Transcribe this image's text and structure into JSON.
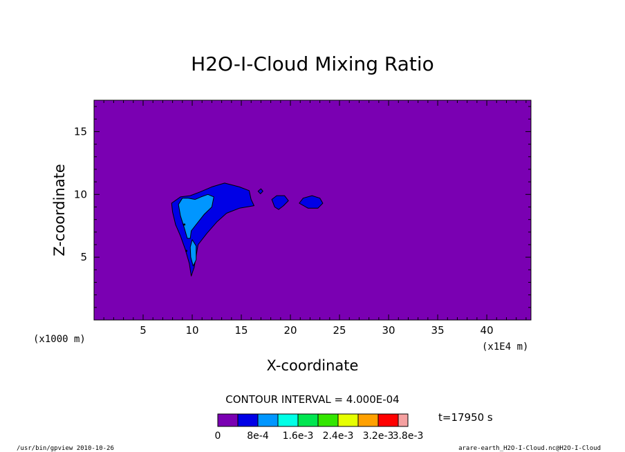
{
  "chart_data": {
    "type": "heatmap",
    "title": "H2O-I-Cloud Mixing Ratio",
    "xlabel": "X-coordinate",
    "ylabel": "Z-coordinate",
    "x_units_left": "(x1000 m)",
    "x_units_right": "(x1E4 m)",
    "xlim": [
      0,
      44.5
    ],
    "ylim": [
      0,
      17.5
    ],
    "x_ticks": [
      5,
      10,
      15,
      20,
      25,
      30,
      35,
      40
    ],
    "x_tick_labels": [
      "5",
      "10",
      "15",
      "20",
      "25",
      "30",
      "35",
      "40"
    ],
    "y_ticks": [
      5,
      10,
      15
    ],
    "y_tick_labels": [
      "5",
      "10",
      "15"
    ],
    "contour_interval_text": "CONTOUR INTERVAL = 4.000E-04",
    "time_text": "t=17950 s",
    "footer_left": "/usr/bin/gpview  2010-10-26",
    "footer_right": "arare-earth_H2O-I-Cloud.nc@H2O-I-Cloud",
    "legend_colors": [
      "#7a00b2",
      "#0000e6",
      "#0096ff",
      "#00ffe6",
      "#00e650",
      "#33e600",
      "#e6ff00",
      "#ffa000",
      "#ff0000",
      "#f5a0a0"
    ],
    "legend_labels": [
      "0",
      "8e-4",
      "1.6e-3",
      "2.4e-3",
      "3.2e-3",
      "3.8e-3"
    ],
    "legend_label_values": [
      0,
      0.0008,
      0.0016,
      0.0024,
      0.0032,
      0.0038
    ],
    "background_color": "#7a00b2",
    "regions": [
      {
        "level": "4e-4 to 8e-4",
        "color": "#0000e6",
        "points": [
          [
            7.9,
            9.3
          ],
          [
            8.0,
            8.6
          ],
          [
            8.3,
            7.6
          ],
          [
            8.8,
            6.7
          ],
          [
            9.3,
            5.6
          ],
          [
            9.7,
            4.5
          ],
          [
            9.9,
            3.5
          ],
          [
            10.2,
            4.2
          ],
          [
            10.6,
            6.0
          ],
          [
            11.5,
            6.9
          ],
          [
            12.5,
            7.8
          ],
          [
            13.5,
            8.5
          ],
          [
            14.8,
            8.9
          ],
          [
            16.3,
            9.1
          ],
          [
            16.0,
            9.6
          ],
          [
            15.8,
            10.3
          ],
          [
            14.8,
            10.6
          ],
          [
            13.3,
            10.9
          ],
          [
            12.0,
            10.6
          ],
          [
            10.8,
            10.2
          ],
          [
            9.8,
            9.9
          ],
          [
            8.8,
            9.8
          ]
        ]
      },
      {
        "level": "4e-4 to 8e-4",
        "color": "#0000e6",
        "points": [
          [
            18.1,
            9.6
          ],
          [
            18.6,
            9.9
          ],
          [
            19.4,
            9.9
          ],
          [
            19.8,
            9.5
          ],
          [
            19.3,
            9.1
          ],
          [
            18.8,
            8.8
          ],
          [
            18.4,
            9.0
          ]
        ]
      },
      {
        "level": "4e-4 to 8e-4",
        "color": "#0000e6",
        "points": [
          [
            20.9,
            9.3
          ],
          [
            21.3,
            9.7
          ],
          [
            22.2,
            9.9
          ],
          [
            23.0,
            9.7
          ],
          [
            23.3,
            9.3
          ],
          [
            22.8,
            8.9
          ],
          [
            21.8,
            8.9
          ]
        ]
      },
      {
        "level": "4e-4 to 8e-4",
        "color": "#0000e6",
        "points": [
          [
            16.7,
            10.25
          ],
          [
            17.0,
            10.45
          ],
          [
            17.2,
            10.25
          ],
          [
            16.95,
            10.05
          ]
        ]
      },
      {
        "level": "8e-4 to 1.2e-3",
        "color": "#0096ff",
        "points": [
          [
            8.6,
            9.2
          ],
          [
            8.8,
            8.3
          ],
          [
            9.2,
            7.3
          ],
          [
            9.5,
            6.5
          ],
          [
            9.8,
            6.5
          ],
          [
            9.9,
            7.1
          ],
          [
            10.4,
            7.6
          ],
          [
            11.2,
            8.4
          ],
          [
            12.0,
            9.0
          ],
          [
            12.2,
            9.8
          ],
          [
            11.6,
            10.0
          ],
          [
            10.9,
            9.8
          ],
          [
            10.3,
            9.6
          ],
          [
            9.6,
            9.7
          ],
          [
            9.0,
            9.7
          ]
        ]
      },
      {
        "level": "8e-4 to 1.2e-3",
        "color": "#0096ff",
        "points": [
          [
            10.0,
            6.4
          ],
          [
            10.4,
            5.9
          ],
          [
            10.4,
            4.8
          ],
          [
            10.1,
            4.3
          ],
          [
            9.85,
            5.0
          ],
          [
            9.8,
            5.8
          ]
        ]
      }
    ],
    "dots": [
      [
        9.2,
        7.6
      ],
      [
        9.4,
        5.5
      ]
    ]
  }
}
